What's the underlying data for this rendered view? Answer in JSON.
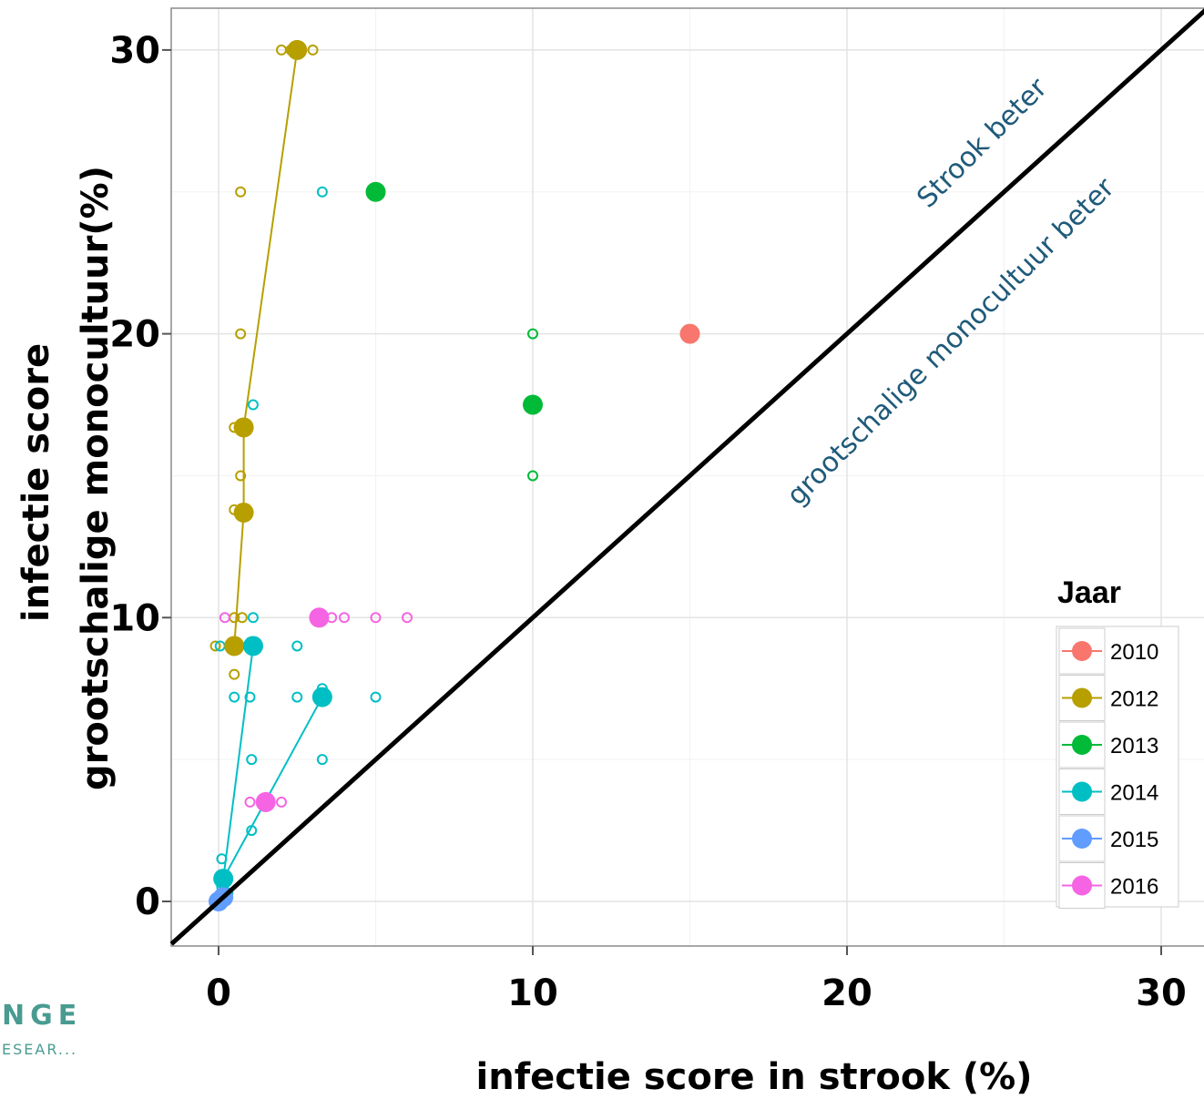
{
  "chart_data": {
    "type": "scatter",
    "xlabel": "infectie score in strook (%)",
    "ylabel": [
      "infectie score",
      "grootschalige monocultuur(%)"
    ],
    "xlim": [
      -1.5,
      31.5
    ],
    "ylim": [
      -1.5,
      31.5
    ],
    "xticks": [
      0,
      10,
      20,
      30
    ],
    "yticks": [
      0,
      10,
      20,
      30
    ],
    "grid": true,
    "diagonal": {
      "from": [
        -1.5,
        -1.5
      ],
      "to": [
        31.5,
        31.5
      ],
      "color": "#000000"
    },
    "annotations": [
      {
        "text": "Strook beter",
        "x": 24.5,
        "y": 26.5,
        "angle": -45
      },
      {
        "text": "grootschalige monocultuur beter",
        "x": 23.5,
        "y": 19.5,
        "angle": -45
      }
    ],
    "legend": {
      "title": "Jaar",
      "placement": "right",
      "entries": [
        {
          "label": "2010",
          "color": "#F8766D"
        },
        {
          "label": "2012",
          "color": "#B79F00"
        },
        {
          "label": "2013",
          "color": "#00BA38"
        },
        {
          "label": "2014",
          "color": "#00BFC4"
        },
        {
          "label": "2015",
          "color": "#619CFF"
        },
        {
          "label": "2016",
          "color": "#F564E3"
        }
      ]
    },
    "series": [
      {
        "name": "2010",
        "color": "#F8766D",
        "means": [
          [
            15,
            20
          ]
        ],
        "points": []
      },
      {
        "name": "2012",
        "color": "#B79F00",
        "means": [
          [
            2.5,
            30
          ],
          [
            0.8,
            16.7
          ],
          [
            0.8,
            13.7
          ],
          [
            0.5,
            9
          ]
        ],
        "points": [
          [
            2,
            30
          ],
          [
            2.3,
            30
          ],
          [
            2.6,
            30
          ],
          [
            3,
            30
          ],
          [
            0.7,
            25
          ],
          [
            0.7,
            20
          ],
          [
            0.5,
            16.7
          ],
          [
            0.7,
            15
          ],
          [
            0.5,
            13.8
          ],
          [
            0.5,
            10
          ],
          [
            0.75,
            10
          ],
          [
            -0.1,
            9
          ],
          [
            0.5,
            8
          ]
        ]
      },
      {
        "name": "2013",
        "color": "#00BA38",
        "means": [
          [
            5,
            25
          ],
          [
            10,
            17.5
          ]
        ],
        "points": [
          [
            10,
            20
          ],
          [
            10,
            15
          ]
        ]
      },
      {
        "name": "2014",
        "color": "#00BFC4",
        "means": [
          [
            1.1,
            9
          ],
          [
            3.3,
            7.2
          ],
          [
            0.15,
            0.8
          ]
        ],
        "points": [
          [
            3.3,
            25
          ],
          [
            1.1,
            17.5
          ],
          [
            1.1,
            10
          ],
          [
            0.05,
            9
          ],
          [
            2.5,
            9
          ],
          [
            0.5,
            7.2
          ],
          [
            1,
            7.2
          ],
          [
            2.5,
            7.2
          ],
          [
            3.3,
            7.5
          ],
          [
            5,
            7.2
          ],
          [
            1.05,
            5
          ],
          [
            3.3,
            5
          ],
          [
            1.05,
            2.5
          ],
          [
            0.1,
            1.5
          ],
          [
            0.1,
            0.5
          ],
          [
            0.3,
            0.3
          ]
        ]
      },
      {
        "name": "2015",
        "color": "#619CFF",
        "means": [
          [
            0,
            0
          ],
          [
            0.15,
            0.15
          ]
        ],
        "points": [
          [
            0.05,
            0.05
          ]
        ]
      },
      {
        "name": "2016",
        "color": "#F564E3",
        "means": [
          [
            3.2,
            10
          ],
          [
            1.5,
            3.5
          ]
        ],
        "points": [
          [
            0.2,
            10
          ],
          [
            3.6,
            10
          ],
          [
            4,
            10
          ],
          [
            5,
            10
          ],
          [
            6,
            10
          ],
          [
            1,
            3.5
          ],
          [
            2,
            3.5
          ]
        ]
      }
    ],
    "connections": [
      {
        "series": "2012",
        "path": [
          [
            0.5,
            9
          ],
          [
            0.8,
            13.7
          ],
          [
            0.8,
            16.7
          ],
          [
            2.5,
            30
          ]
        ]
      },
      {
        "series": "2014",
        "path": [
          [
            0.15,
            0.8
          ],
          [
            1.1,
            9
          ]
        ]
      },
      {
        "series": "2014",
        "path": [
          [
            0.15,
            0.8
          ],
          [
            3.3,
            7.2
          ]
        ]
      }
    ]
  },
  "logo": {
    "line1": "NGE",
    "line2": "ESEAR..."
  }
}
